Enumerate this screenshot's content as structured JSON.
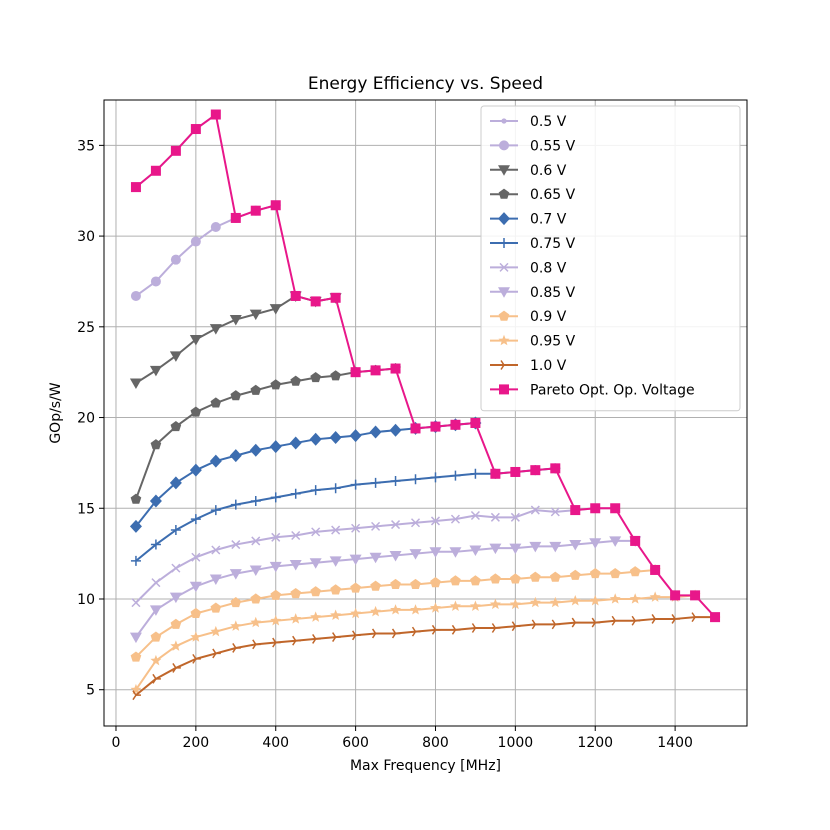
{
  "chart_data": {
    "type": "line",
    "title": "Energy Efficiency vs. Speed",
    "xlabel": "Max Frequency [MHz]",
    "ylabel": "GOp/s/W",
    "xlim": [
      -30,
      1580
    ],
    "ylim": [
      3.0,
      37.5
    ],
    "xticks": [
      0,
      200,
      400,
      600,
      800,
      1000,
      1200,
      1400
    ],
    "yticks": [
      5,
      10,
      15,
      20,
      25,
      30,
      35
    ],
    "grid": true,
    "legend_position": "upper right",
    "series": [
      {
        "name": "0.5 V",
        "color": "#bcaedb",
        "marker": "point",
        "x": [
          50,
          100,
          150,
          200,
          250
        ],
        "y": [
          32.7,
          33.6,
          34.7,
          35.9,
          36.7
        ]
      },
      {
        "name": "0.55 V",
        "color": "#bcaedb",
        "marker": "circle",
        "x": [
          50,
          100,
          150,
          200,
          250,
          300,
          350,
          400
        ],
        "y": [
          26.7,
          27.5,
          28.7,
          29.7,
          30.5,
          31.0,
          31.4,
          31.7
        ]
      },
      {
        "name": "0.6 V",
        "color": "#666666",
        "marker": "triangle-down",
        "x": [
          50,
          100,
          150,
          200,
          250,
          300,
          350,
          400,
          450,
          500,
          550
        ],
        "y": [
          21.9,
          22.6,
          23.4,
          24.3,
          24.9,
          25.4,
          25.7,
          26.0,
          26.7,
          26.4,
          26.6
        ]
      },
      {
        "name": "0.65 V",
        "color": "#666666",
        "marker": "pentagon",
        "x": [
          50,
          100,
          150,
          200,
          250,
          300,
          350,
          400,
          450,
          500,
          550,
          600,
          650,
          700
        ],
        "y": [
          15.5,
          18.5,
          19.5,
          20.3,
          20.8,
          21.2,
          21.5,
          21.8,
          22.0,
          22.2,
          22.3,
          22.5,
          22.6,
          22.7
        ]
      },
      {
        "name": "0.7 V",
        "color": "#3c6db0",
        "marker": "diamond",
        "x": [
          50,
          100,
          150,
          200,
          250,
          300,
          350,
          400,
          450,
          500,
          550,
          600,
          650,
          700,
          750,
          800,
          850,
          900
        ],
        "y": [
          14.0,
          15.4,
          16.4,
          17.1,
          17.6,
          17.9,
          18.2,
          18.4,
          18.6,
          18.8,
          18.9,
          19.0,
          19.2,
          19.3,
          19.4,
          19.5,
          19.6,
          19.7
        ]
      },
      {
        "name": "0.75 V",
        "color": "#3c6db0",
        "marker": "plus",
        "x": [
          50,
          100,
          150,
          200,
          250,
          300,
          350,
          400,
          450,
          500,
          550,
          600,
          650,
          700,
          750,
          800,
          850,
          900,
          950,
          1000,
          1050,
          1100
        ],
        "y": [
          12.1,
          13.0,
          13.8,
          14.4,
          14.9,
          15.2,
          15.4,
          15.6,
          15.8,
          16.0,
          16.1,
          16.3,
          16.4,
          16.5,
          16.6,
          16.7,
          16.8,
          16.9,
          16.9,
          17.0,
          17.1,
          17.2
        ]
      },
      {
        "name": "0.8 V",
        "color": "#bcaedb",
        "marker": "x",
        "x": [
          50,
          100,
          150,
          200,
          250,
          300,
          350,
          400,
          450,
          500,
          550,
          600,
          650,
          700,
          750,
          800,
          850,
          900,
          950,
          1000,
          1050,
          1100,
          1150,
          1200,
          1250
        ],
        "y": [
          9.8,
          10.9,
          11.7,
          12.3,
          12.7,
          13.0,
          13.2,
          13.4,
          13.5,
          13.7,
          13.8,
          13.9,
          14.0,
          14.1,
          14.2,
          14.3,
          14.4,
          14.6,
          14.5,
          14.5,
          14.9,
          14.8,
          14.9,
          15.0,
          15.0
        ]
      },
      {
        "name": "0.85 V",
        "color": "#bcaedb",
        "marker": "triangle-down",
        "x": [
          50,
          100,
          150,
          200,
          250,
          300,
          350,
          400,
          450,
          500,
          550,
          600,
          650,
          700,
          750,
          800,
          850,
          900,
          950,
          1000,
          1050,
          1100,
          1150,
          1200,
          1250,
          1300
        ],
        "y": [
          7.9,
          9.4,
          10.1,
          10.7,
          11.1,
          11.4,
          11.6,
          11.8,
          11.9,
          12.0,
          12.1,
          12.2,
          12.3,
          12.4,
          12.5,
          12.6,
          12.6,
          12.7,
          12.8,
          12.8,
          12.9,
          12.9,
          13.0,
          13.1,
          13.2,
          13.2
        ]
      },
      {
        "name": "0.9 V",
        "color": "#f7c08a",
        "marker": "pentagon",
        "x": [
          50,
          100,
          150,
          200,
          250,
          300,
          350,
          400,
          450,
          500,
          550,
          600,
          650,
          700,
          750,
          800,
          850,
          900,
          950,
          1000,
          1050,
          1100,
          1150,
          1200,
          1250,
          1300,
          1350
        ],
        "y": [
          6.8,
          7.9,
          8.6,
          9.2,
          9.5,
          9.8,
          10.0,
          10.2,
          10.3,
          10.4,
          10.5,
          10.6,
          10.7,
          10.8,
          10.8,
          10.9,
          11.0,
          11.0,
          11.1,
          11.1,
          11.2,
          11.2,
          11.3,
          11.4,
          11.4,
          11.5,
          11.6
        ]
      },
      {
        "name": "0.95 V",
        "color": "#f7c08a",
        "marker": "star",
        "x": [
          50,
          100,
          150,
          200,
          250,
          300,
          350,
          400,
          450,
          500,
          550,
          600,
          650,
          700,
          750,
          800,
          850,
          900,
          950,
          1000,
          1050,
          1100,
          1150,
          1200,
          1250,
          1300,
          1350,
          1400,
          1450
        ],
        "y": [
          5.0,
          6.6,
          7.4,
          7.9,
          8.2,
          8.5,
          8.7,
          8.8,
          8.9,
          9.0,
          9.1,
          9.2,
          9.3,
          9.4,
          9.4,
          9.5,
          9.6,
          9.6,
          9.7,
          9.7,
          9.8,
          9.8,
          9.9,
          9.9,
          10.0,
          10.0,
          10.1,
          10.1,
          10.2
        ]
      },
      {
        "name": "1.0 V",
        "color": "#c0662a",
        "marker": "tri-right",
        "x": [
          50,
          100,
          150,
          200,
          250,
          300,
          350,
          400,
          450,
          500,
          550,
          600,
          650,
          700,
          750,
          800,
          850,
          900,
          950,
          1000,
          1050,
          1100,
          1150,
          1200,
          1250,
          1300,
          1350,
          1400,
          1450,
          1500
        ],
        "y": [
          4.7,
          5.6,
          6.2,
          6.7,
          7.0,
          7.3,
          7.5,
          7.6,
          7.7,
          7.8,
          7.9,
          8.0,
          8.1,
          8.1,
          8.2,
          8.3,
          8.3,
          8.4,
          8.4,
          8.5,
          8.6,
          8.6,
          8.7,
          8.7,
          8.8,
          8.8,
          8.9,
          8.9,
          9.0,
          9.0
        ]
      },
      {
        "name": "Pareto Opt. Op. Voltage",
        "color": "#e8178a",
        "marker": "square",
        "x": [
          50,
          100,
          150,
          200,
          250,
          300,
          350,
          400,
          450,
          500,
          550,
          600,
          650,
          700,
          750,
          800,
          850,
          900,
          950,
          1000,
          1050,
          1100,
          1150,
          1200,
          1250,
          1300,
          1350,
          1400,
          1450,
          1500
        ],
        "y": [
          32.7,
          33.6,
          34.7,
          35.9,
          36.7,
          31.0,
          31.4,
          31.7,
          26.7,
          26.4,
          26.6,
          22.5,
          22.6,
          22.7,
          19.4,
          19.5,
          19.6,
          19.7,
          16.9,
          17.0,
          17.1,
          17.2,
          14.9,
          15.0,
          15.0,
          13.2,
          11.6,
          10.2,
          10.2,
          9.0
        ]
      }
    ]
  }
}
